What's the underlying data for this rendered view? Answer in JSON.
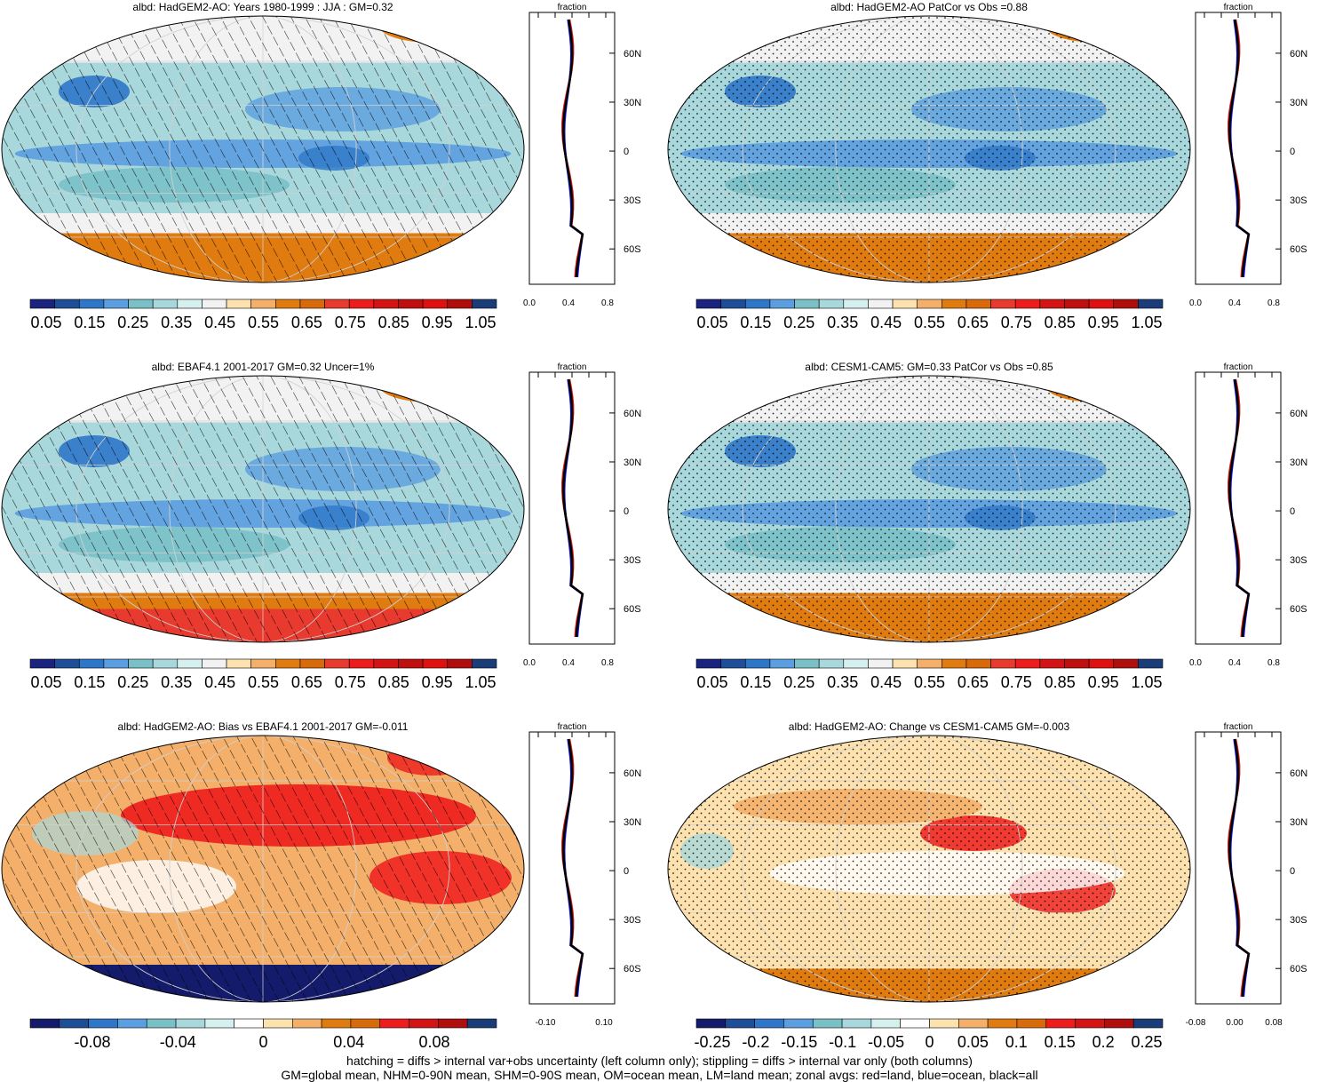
{
  "panels": [
    {
      "title": "albd: HadGEM2-AO: Years 1980-1999 : JJA : GM=0.32",
      "kind": "abs",
      "pattern": "hatch",
      "colorbar_labels": [
        "0.05",
        "0.15",
        "0.25",
        "0.35",
        "0.45",
        "0.55",
        "0.65",
        "0.75",
        "0.85",
        "0.95",
        "1.05"
      ],
      "zonal": {
        "xticks": [
          "0.0",
          "0.4",
          "0.8"
        ],
        "xlabel": "fraction"
      }
    },
    {
      "title": "albd: HadGEM2-AO PatCor vs Obs =0.88",
      "kind": "abs",
      "pattern": "stipple",
      "colorbar_labels": [
        "0.05",
        "0.15",
        "0.25",
        "0.35",
        "0.45",
        "0.55",
        "0.65",
        "0.75",
        "0.85",
        "0.95",
        "1.05"
      ],
      "zonal": {
        "xticks": [
          "0.0",
          "0.4",
          "0.8"
        ],
        "xlabel": "fraction"
      }
    },
    {
      "title": "albd: EBAF4.1 2001-2017 GM=0.32 Uncer=1%",
      "kind": "abs",
      "pattern": "hatch",
      "colorbar_labels": [
        "0.05",
        "0.15",
        "0.25",
        "0.35",
        "0.45",
        "0.55",
        "0.65",
        "0.75",
        "0.85",
        "0.95",
        "1.05"
      ],
      "zonal": {
        "xticks": [
          "0.0",
          "0.4",
          "0.8"
        ],
        "xlabel": "fraction"
      }
    },
    {
      "title": "albd: CESM1-CAM5: GM=0.33 PatCor vs Obs =0.85",
      "kind": "abs",
      "pattern": "stipple",
      "colorbar_labels": [
        "0.05",
        "0.15",
        "0.25",
        "0.35",
        "0.45",
        "0.55",
        "0.65",
        "0.75",
        "0.85",
        "0.95",
        "1.05"
      ],
      "zonal": {
        "xticks": [
          "0.0",
          "0.4",
          "0.8"
        ],
        "xlabel": "fraction"
      }
    },
    {
      "title": "albd: HadGEM2-AO: Bias vs EBAF4.1 2001-2017 GM=-0.011",
      "kind": "diff",
      "pattern": "hatch",
      "colorbar_labels": [
        "-0.08",
        "-0.04",
        "0",
        "0.04",
        "0.08"
      ],
      "zonal": {
        "xticks": [
          "-0.10",
          "0.10"
        ],
        "xlabel": "fraction"
      }
    },
    {
      "title": "albd: HadGEM2-AO: Change vs CESM1-CAM5 GM=-0.003",
      "kind": "diff",
      "pattern": "stipple",
      "colorbar_labels": [
        "-0.25",
        "-0.2",
        "-0.15",
        "-0.1",
        "-0.05",
        "0",
        "0.05",
        "0.1",
        "0.15",
        "0.2",
        "0.25"
      ],
      "zonal": {
        "xticks": [
          "-0.08",
          "0.00",
          "0.08"
        ],
        "xlabel": "fraction"
      }
    }
  ],
  "lat_labels": [
    "60N",
    "30N",
    "0",
    "30S",
    "60S"
  ],
  "colors": {
    "abs_scale": [
      "#1a237e",
      "#1f4e99",
      "#2e77c8",
      "#5b9fe0",
      "#79c1c6",
      "#a8d8dc",
      "#d6f0f0",
      "#f2f2f2",
      "#fde2b0",
      "#f4b06a",
      "#e07b10",
      "#d86a0a",
      "#e83a2e",
      "#ee1c1c",
      "#d41414",
      "#c00f0f",
      "#e01010",
      "#b00d0d",
      "#1a3d7a"
    ],
    "diff_scale": [
      "#141b6a",
      "#1f4e99",
      "#2e77c8",
      "#5b9fe0",
      "#79c1c6",
      "#a8d8dc",
      "#d6f0f0",
      "#ffffff",
      "#fde2b0",
      "#f4b06a",
      "#e07b10",
      "#d86a0a",
      "#ee1c1c",
      "#d41414",
      "#b00d0d",
      "#1a3d7a"
    ],
    "land_line": "#e01515",
    "ocean_line": "#1010e0",
    "all_line": "#000000"
  },
  "footer": {
    "line1": "hatching = diffs > internal var+obs uncertainty (left column only); stippling = diffs > internal var only (both columns)",
    "line2": "GM=global mean, NHM=0-90N mean, SHM=0-90S mean, OM=ocean mean, LM=land mean; zonal avgs: red=land, blue=ocean, black=all"
  }
}
